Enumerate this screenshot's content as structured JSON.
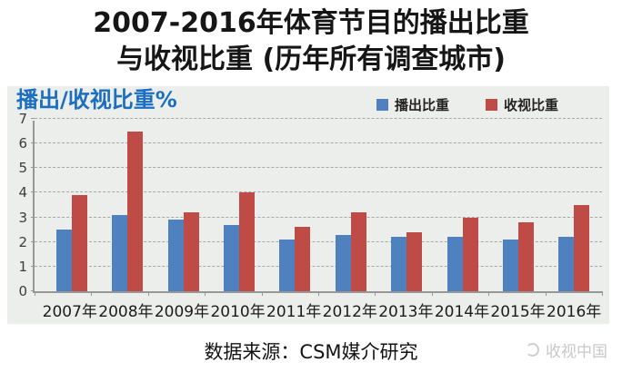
{
  "title": {
    "line1": "2007-2016年体育节目的播出比重",
    "line2": "与收视比重 (历年所有调查城市)"
  },
  "panel": {
    "axis_title": "播出/收视比重%"
  },
  "chart_data": {
    "type": "bar",
    "title": "2007-2016年体育节目的播出比重与收视比重 (历年所有调查城市)",
    "categories": [
      "2007年",
      "2008年",
      "2009年",
      "2010年",
      "2011年",
      "2012年",
      "2013年",
      "2014年",
      "2015年",
      "2016年"
    ],
    "series": [
      {
        "name": "播出比重",
        "color": "#4e81bd",
        "values": [
          2.5,
          3.1,
          2.9,
          2.7,
          2.1,
          2.3,
          2.2,
          2.2,
          2.1,
          2.2
        ]
      },
      {
        "name": "收视比重",
        "color": "#bf4b47",
        "values": [
          3.9,
          6.5,
          3.2,
          4.0,
          2.6,
          3.2,
          2.4,
          3.0,
          2.8,
          3.5
        ]
      }
    ],
    "xlabel": "",
    "ylabel": "播出/收视比重%",
    "ylim": [
      0,
      7
    ],
    "yticks": [
      0,
      1,
      2,
      3,
      4,
      5,
      6,
      7
    ],
    "grid": "horizontal-dashed",
    "legend_position": "top-right"
  },
  "footer": {
    "source": "数据来源：CSM媒介研究",
    "watermark": "收视中国"
  },
  "colors": {
    "series_blue": "#4e81bd",
    "series_red": "#bf4b47",
    "header_blue": "#1c6fc0",
    "panel_bg": "#eceeeb"
  }
}
